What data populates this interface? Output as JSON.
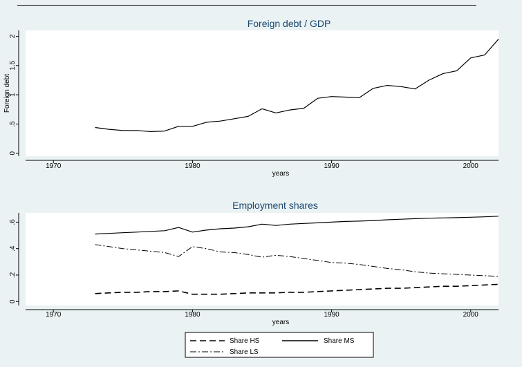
{
  "chart_data": [
    {
      "type": "line",
      "title": "Foreign debt / GDP",
      "xlabel": "years",
      "ylabel": "Foreign debt",
      "xlim": [
        1968,
        2002
      ],
      "ylim": [
        -0.05,
        2.1
      ],
      "xticks": [
        1970,
        1980,
        1990,
        2000
      ],
      "yticks": [
        0,
        0.5,
        1,
        1.5,
        2
      ],
      "ytick_labels": [
        "0",
        ".5",
        "1",
        "1.5",
        "2"
      ],
      "series": [
        {
          "x": [
            1973,
            1974,
            1975,
            1976,
            1977,
            1978,
            1979,
            1980,
            1981,
            1982,
            1983,
            1984,
            1985,
            1986,
            1987,
            1988,
            1989,
            1990,
            1991,
            1992,
            1993,
            1994,
            1995,
            1996,
            1997,
            1998,
            1999,
            2000,
            2001,
            2002
          ],
          "values": [
            0.44,
            0.41,
            0.39,
            0.39,
            0.37,
            0.38,
            0.46,
            0.46,
            0.53,
            0.55,
            0.59,
            0.63,
            0.76,
            0.69,
            0.74,
            0.77,
            0.94,
            0.97,
            0.96,
            0.95,
            1.11,
            1.16,
            1.14,
            1.1,
            1.25,
            1.36,
            1.41,
            1.63,
            1.68,
            1.95
          ]
        }
      ]
    },
    {
      "type": "line",
      "title": "Employment shares",
      "xlabel": "years",
      "ylabel": "",
      "xlim": [
        1968,
        2002
      ],
      "ylim": [
        -0.03,
        0.67
      ],
      "xticks": [
        1970,
        1980,
        1990,
        2000
      ],
      "yticks": [
        0,
        0.2,
        0.4,
        0.6
      ],
      "ytick_labels": [
        "0",
        ".2",
        ".4",
        ".6"
      ],
      "legend": "bottom",
      "x": [
        1973,
        1974,
        1975,
        1976,
        1977,
        1978,
        1979,
        1980,
        1981,
        1982,
        1983,
        1984,
        1985,
        1986,
        1987,
        1988,
        1989,
        1990,
        1991,
        1992,
        1993,
        1994,
        1995,
        1996,
        1997,
        1998,
        1999,
        2000,
        2001,
        2002
      ],
      "series": [
        {
          "name": "Share HS",
          "style": "dashed",
          "values": [
            0.06,
            0.065,
            0.07,
            0.07,
            0.075,
            0.075,
            0.08,
            0.055,
            0.055,
            0.055,
            0.06,
            0.065,
            0.065,
            0.065,
            0.07,
            0.07,
            0.075,
            0.08,
            0.085,
            0.09,
            0.095,
            0.1,
            0.1,
            0.105,
            0.11,
            0.115,
            0.115,
            0.12,
            0.125,
            0.13
          ]
        },
        {
          "name": "Share MS",
          "style": "solid",
          "values": [
            0.51,
            0.515,
            0.52,
            0.525,
            0.53,
            0.535,
            0.56,
            0.525,
            0.54,
            0.55,
            0.555,
            0.565,
            0.585,
            0.575,
            0.585,
            0.59,
            0.595,
            0.6,
            0.605,
            0.608,
            0.612,
            0.618,
            0.622,
            0.626,
            0.63,
            0.632,
            0.634,
            0.637,
            0.64,
            0.645
          ]
        },
        {
          "name": "Share LS",
          "style": "dashdot",
          "values": [
            0.43,
            0.415,
            0.4,
            0.39,
            0.38,
            0.37,
            0.34,
            0.415,
            0.4,
            0.375,
            0.37,
            0.355,
            0.335,
            0.35,
            0.34,
            0.325,
            0.31,
            0.295,
            0.29,
            0.28,
            0.265,
            0.25,
            0.24,
            0.225,
            0.215,
            0.21,
            0.205,
            0.2,
            0.195,
            0.19
          ]
        }
      ]
    }
  ]
}
